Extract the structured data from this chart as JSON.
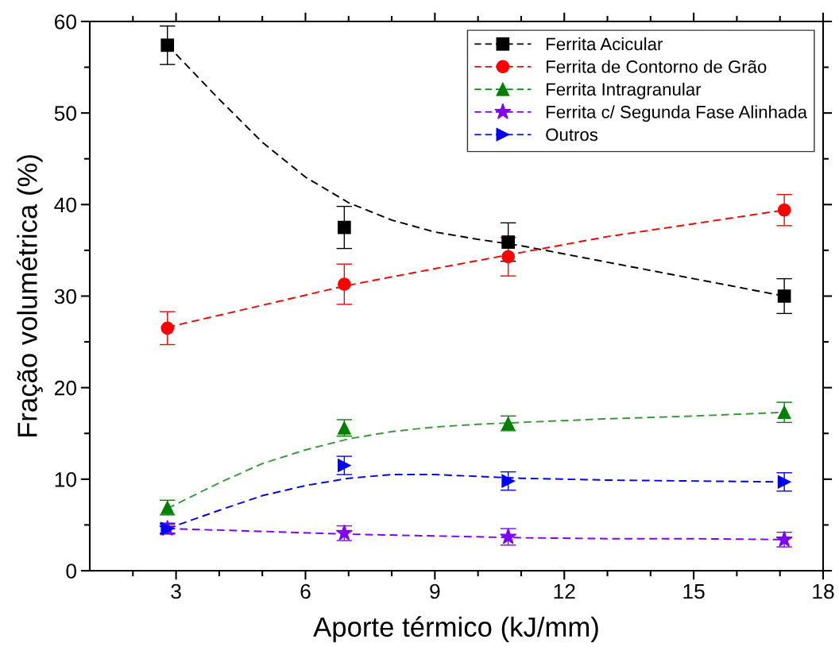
{
  "chart_data": {
    "type": "scatter",
    "xlabel": "Aporte térmico (kJ/mm)",
    "ylabel": "Fração volumétrica (%)",
    "xlim": [
      1,
      18
    ],
    "ylim": [
      0,
      60
    ],
    "xticks": [
      {
        "value": 2,
        "label": null
      },
      3,
      {
        "value": 4,
        "label": null
      },
      {
        "value": 5,
        "label": null
      },
      6,
      {
        "value": 7,
        "label": null
      },
      {
        "value": 8,
        "label": null
      },
      9,
      {
        "value": 10,
        "label": null
      },
      {
        "value": 11,
        "label": null
      },
      12,
      {
        "value": 13,
        "label": null
      },
      {
        "value": 14,
        "label": null
      },
      15,
      {
        "value": 16,
        "label": null
      },
      {
        "value": 17,
        "label": null
      },
      18
    ],
    "yticks": [
      0,
      {
        "value": 5,
        "label": null
      },
      10,
      {
        "value": 15,
        "label": null
      },
      20,
      {
        "value": 25,
        "label": null
      },
      30,
      {
        "value": 35,
        "label": null
      },
      40,
      {
        "value": 45,
        "label": null
      },
      50,
      {
        "value": 55,
        "label": null
      },
      60
    ],
    "grid": false,
    "legend": "top right",
    "series": [
      {
        "name": "Ferrita Acicular",
        "color": "#000000",
        "marker": "square",
        "x": [
          2.8,
          6.9,
          10.7,
          17.1
        ],
        "values": [
          57.4,
          37.5,
          35.9,
          30.0
        ],
        "errors": [
          2.1,
          2.3,
          2.1,
          1.9
        ]
      },
      {
        "type": "line",
        "color": "#000000",
        "line_style": "dashed",
        "x": [
          2.8,
          4,
          5,
          6,
          7,
          8,
          9,
          10,
          11,
          12,
          13,
          14,
          15,
          16,
          17.1
        ],
        "values": [
          57.4,
          51.5,
          46.8,
          43.0,
          40.2,
          38.3,
          37.0,
          36.2,
          35.5,
          34.6,
          33.7,
          32.8,
          31.9,
          31.0,
          30.0
        ]
      },
      {
        "name": "Ferrita de Contorno de Grão",
        "color": "#ff0000",
        "marker": "circle",
        "x": [
          2.8,
          6.9,
          10.7,
          17.1
        ],
        "values": [
          26.5,
          31.3,
          34.3,
          39.4
        ],
        "errors": [
          1.8,
          2.2,
          2.1,
          1.7
        ]
      },
      {
        "type": "line",
        "color": "#ff0000",
        "line_style": "dashed",
        "x": [
          2.8,
          5,
          6.9,
          9,
          10.7,
          13,
          15,
          17.1
        ],
        "values": [
          26.6,
          29.0,
          31.1,
          33.0,
          34.5,
          36.5,
          37.9,
          39.4
        ]
      },
      {
        "name": "Ferrita Intragranular",
        "color": "#008000",
        "marker": "triangle",
        "x": [
          2.8,
          6.9,
          10.7,
          17.1
        ],
        "values": [
          6.9,
          15.6,
          16.1,
          17.3
        ],
        "errors": [
          0.8,
          0.9,
          0.8,
          1.1
        ]
      },
      {
        "type": "line",
        "color": "#3a9a3a",
        "line_style": "dashed",
        "x": [
          2.8,
          4,
          5,
          6,
          7,
          8,
          9,
          10,
          11,
          13,
          15,
          17.1
        ],
        "values": [
          6.8,
          9.6,
          11.7,
          13.2,
          14.4,
          15.2,
          15.7,
          16.0,
          16.2,
          16.6,
          16.9,
          17.3
        ]
      },
      {
        "name": "Ferrita c/ Segunda Fase Alinhada",
        "color": "#8000ff",
        "marker": "star",
        "x": [
          2.8,
          6.9,
          10.7,
          17.1
        ],
        "values": [
          4.6,
          4.1,
          3.7,
          3.4
        ],
        "errors": [
          0.6,
          0.8,
          0.9,
          0.8
        ]
      },
      {
        "type": "line",
        "color": "#8000ff",
        "line_style": "dashed",
        "x": [
          2.8,
          5,
          6.9,
          9,
          11,
          13,
          15,
          17.1
        ],
        "values": [
          4.6,
          4.3,
          4.0,
          3.8,
          3.6,
          3.5,
          3.5,
          3.4
        ]
      },
      {
        "name": "Outros",
        "color": "#0000ff",
        "marker": "triangle-right",
        "x": [
          2.8,
          6.9,
          10.7,
          17.1
        ],
        "values": [
          4.6,
          11.5,
          9.8,
          9.7
        ],
        "errors": [
          0.5,
          1.0,
          1.0,
          1.0
        ]
      },
      {
        "type": "line",
        "color": "#0000ff",
        "line_style": "dashed",
        "x": [
          2.8,
          4,
          5,
          6,
          7,
          8,
          9,
          10,
          11,
          13,
          15,
          17.1
        ],
        "values": [
          4.6,
          6.6,
          8.2,
          9.3,
          10.1,
          10.5,
          10.5,
          10.3,
          10.1,
          9.9,
          9.8,
          9.7
        ]
      }
    ]
  }
}
